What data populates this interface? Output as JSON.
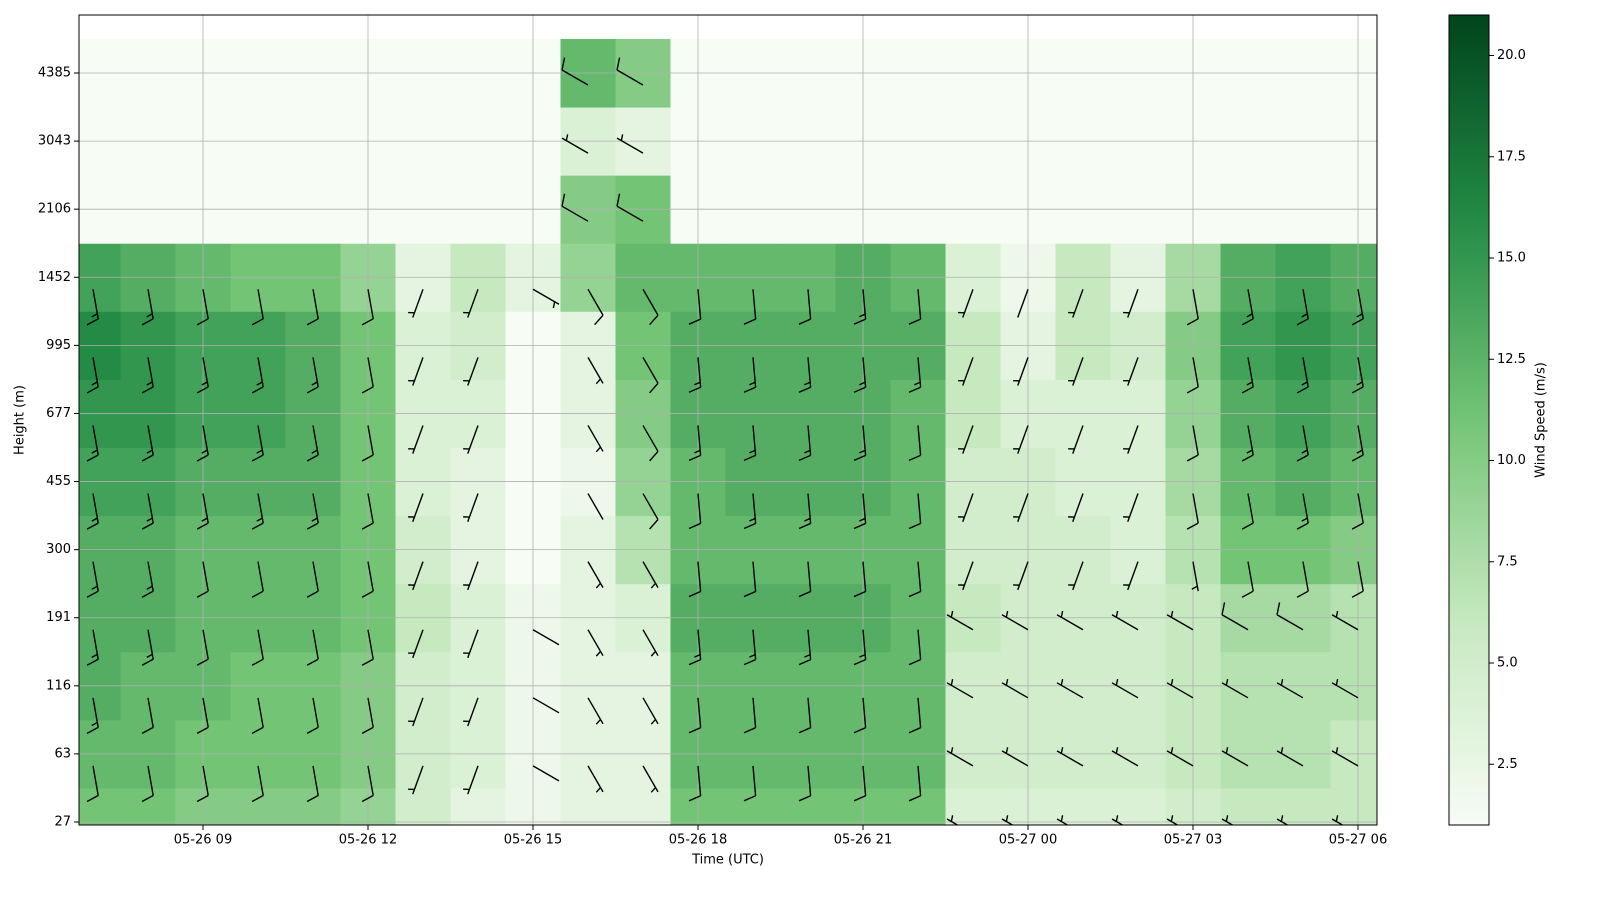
{
  "chart_data": {
    "type": "heatmap-barbs",
    "x_label": "Time (UTC)",
    "y_label": "Height (m)",
    "colorbar_label": "Wind Speed (m/s)",
    "categories": [
      null,
      null,
      "05-26 09",
      null,
      null,
      "05-26 12",
      null,
      null,
      "05-26 15",
      null,
      null,
      "05-26 18",
      null,
      null,
      "05-26 21",
      null,
      null,
      "05-27 00",
      null,
      null,
      "05-27 03",
      null,
      null,
      "05-27 06"
    ],
    "y": [
      27,
      63,
      116,
      191,
      300,
      455,
      677,
      995,
      1452,
      2106,
      3043,
      4385
    ],
    "grid": true,
    "colormap": [
      "#f7fcf5",
      "#c7e9c0",
      "#74c476",
      "#238b45",
      "#00441b"
    ],
    "clim": [
      1,
      21
    ],
    "cticks": [
      {
        "value": 2.5,
        "label": "2.5"
      },
      {
        "value": 5,
        "label": "5.0"
      },
      {
        "value": 7.5,
        "label": "7.5"
      },
      {
        "value": 10,
        "label": "10.0"
      },
      {
        "value": 12.5,
        "label": "12.5"
      },
      {
        "value": 15,
        "label": "15.0"
      },
      {
        "value": 17.5,
        "label": "17.5"
      },
      {
        "value": 20,
        "label": "20.0"
      }
    ],
    "barb_color": "#000000",
    "speed": [
      [
        11,
        11,
        10,
        10,
        10,
        9,
        5,
        3,
        2,
        3,
        3,
        11,
        11,
        11,
        11,
        11,
        4,
        4,
        4,
        4,
        5,
        6,
        6,
        6
      ],
      [
        12,
        12,
        11,
        11,
        11,
        10,
        5,
        4,
        2,
        3,
        3,
        12,
        12,
        12,
        12,
        12,
        5,
        5,
        5,
        5,
        6,
        7,
        7,
        6
      ],
      [
        13,
        12,
        12,
        11,
        11,
        10,
        5,
        4,
        2,
        3,
        3,
        12,
        12,
        12,
        12,
        12,
        5,
        5,
        5,
        5,
        6,
        7,
        7,
        7
      ],
      [
        13,
        13,
        12,
        12,
        12,
        11,
        6,
        4,
        2,
        3,
        4,
        13,
        13,
        13,
        13,
        12,
        6,
        5,
        5,
        5,
        6,
        8,
        8,
        7
      ],
      [
        13,
        13,
        12,
        12,
        12,
        11,
        5,
        3,
        1,
        3,
        7,
        12,
        12,
        12,
        12,
        12,
        5,
        5,
        5,
        4,
        7,
        11,
        11,
        10
      ],
      [
        14,
        14,
        13,
        13,
        13,
        11,
        4,
        3,
        1,
        2,
        9,
        12,
        13,
        13,
        13,
        12,
        5,
        5,
        4,
        4,
        8,
        12,
        13,
        12
      ],
      [
        15,
        15,
        14,
        14,
        13,
        11,
        4,
        4,
        1,
        3,
        10,
        13,
        13,
        13,
        13,
        12,
        6,
        4,
        4,
        4,
        9,
        13,
        14,
        13
      ],
      [
        16,
        15,
        14,
        14,
        13,
        11,
        4,
        5,
        1,
        3,
        11,
        13,
        13,
        13,
        13,
        13,
        6,
        3,
        6,
        5,
        10,
        14,
        15,
        14
      ],
      [
        14,
        13,
        12,
        11,
        11,
        9,
        3,
        6,
        3,
        9,
        12,
        12,
        12,
        12,
        13,
        12,
        4,
        2,
        6,
        3,
        8,
        13,
        14,
        13
      ],
      [
        1,
        1,
        1,
        1,
        1,
        1,
        1,
        1,
        1,
        10,
        11,
        1,
        1,
        1,
        1,
        1,
        1,
        1,
        1,
        1,
        1,
        1,
        1,
        1
      ],
      [
        1,
        1,
        1,
        1,
        1,
        1,
        1,
        1,
        1,
        4,
        3,
        1,
        1,
        1,
        1,
        1,
        1,
        1,
        1,
        1,
        1,
        1,
        1,
        1
      ],
      [
        1,
        1,
        1,
        1,
        1,
        1,
        1,
        1,
        1,
        12,
        10,
        1,
        1,
        1,
        1,
        1,
        1,
        1,
        1,
        1,
        1,
        1,
        1,
        1
      ]
    ],
    "direction": [
      [
        170,
        170,
        170,
        170,
        170,
        170,
        200,
        200,
        120,
        150,
        150,
        175,
        175,
        175,
        175,
        175,
        300,
        300,
        300,
        300,
        300,
        300,
        300,
        300
      ],
      [
        170,
        170,
        170,
        170,
        170,
        170,
        200,
        200,
        120,
        150,
        150,
        175,
        175,
        175,
        175,
        175,
        300,
        300,
        300,
        300,
        300,
        300,
        300,
        300
      ],
      [
        170,
        170,
        170,
        170,
        170,
        170,
        200,
        200,
        120,
        150,
        150,
        175,
        175,
        175,
        175,
        175,
        300,
        300,
        300,
        300,
        300,
        300,
        300,
        300
      ],
      [
        170,
        170,
        170,
        170,
        170,
        170,
        200,
        200,
        120,
        150,
        150,
        175,
        175,
        175,
        175,
        175,
        300,
        300,
        300,
        300,
        300,
        300,
        300,
        300
      ],
      [
        170,
        170,
        170,
        170,
        170,
        170,
        200,
        200,
        null,
        150,
        150,
        175,
        175,
        175,
        175,
        175,
        200,
        200,
        200,
        200,
        170,
        170,
        170,
        170
      ],
      [
        170,
        170,
        170,
        170,
        170,
        170,
        200,
        200,
        null,
        150,
        150,
        175,
        175,
        175,
        175,
        175,
        200,
        200,
        200,
        200,
        170,
        170,
        170,
        170
      ],
      [
        170,
        170,
        170,
        170,
        170,
        170,
        200,
        200,
        null,
        150,
        150,
        175,
        175,
        175,
        175,
        175,
        200,
        200,
        200,
        200,
        170,
        170,
        170,
        170
      ],
      [
        170,
        170,
        170,
        170,
        170,
        170,
        200,
        200,
        null,
        150,
        150,
        175,
        175,
        175,
        175,
        175,
        200,
        200,
        200,
        200,
        170,
        170,
        170,
        170
      ],
      [
        170,
        170,
        170,
        170,
        170,
        170,
        200,
        200,
        120,
        150,
        150,
        175,
        175,
        175,
        175,
        175,
        200,
        200,
        200,
        200,
        170,
        170,
        170,
        170
      ],
      [
        null,
        null,
        null,
        null,
        null,
        null,
        null,
        null,
        null,
        300,
        300,
        null,
        null,
        null,
        null,
        null,
        null,
        null,
        null,
        null,
        null,
        null,
        null,
        null
      ],
      [
        null,
        null,
        null,
        null,
        null,
        null,
        null,
        null,
        null,
        300,
        300,
        null,
        null,
        null,
        null,
        null,
        null,
        null,
        null,
        null,
        null,
        null,
        null,
        null
      ],
      [
        null,
        null,
        null,
        null,
        null,
        null,
        null,
        null,
        null,
        300,
        300,
        null,
        null,
        null,
        null,
        null,
        null,
        null,
        null,
        null,
        null,
        null,
        null,
        null
      ]
    ]
  }
}
